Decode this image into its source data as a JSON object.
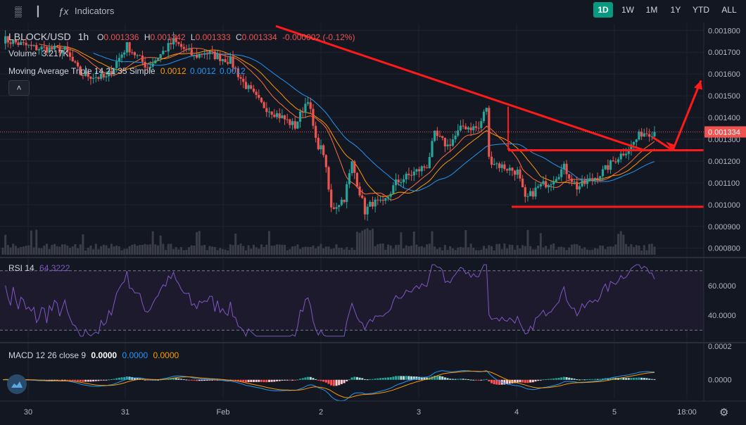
{
  "toolbar": {
    "indicators_label": "Indicators",
    "ranges": [
      "1D",
      "1W",
      "1M",
      "1Y",
      "YTD",
      "ALL"
    ],
    "active_range": "1D"
  },
  "legend": {
    "symbol": "LBLOCK/USD",
    "interval": "1h",
    "o_label": "O",
    "o_value": "0.001336",
    "h_label": "H",
    "h_value": "0.001342",
    "l_label": "L",
    "l_value": "0.001333",
    "c_label": "C",
    "c_value": "0.001334",
    "change": "-0.000002 (-0.12%)",
    "volume_label": "Volume",
    "volume_value": "3.217K",
    "ma_label": "Moving Average Triple 14 21 35 Simple",
    "ma_values": [
      "0.0012",
      "0.0012",
      "0.0012"
    ]
  },
  "rsi": {
    "label": "RSI 14",
    "value": "64.3222"
  },
  "macd": {
    "label": "MACD 12 26 close 9",
    "values": [
      "0.0000",
      "0.0000",
      "0.0000"
    ]
  },
  "colors": {
    "up": "#26a69a",
    "down": "#ef5350",
    "ma1": "#f7525f",
    "ma2": "#ff9800",
    "ma3": "#2196f3",
    "rsi": "#7e57c2",
    "annotation": "#ff1a1a",
    "macd_line": "#2196f3",
    "signal_line": "#ff9800"
  },
  "chart_data": [
    {
      "type": "candlestick",
      "title": "LBLOCK/USD 1h",
      "x_ticks": [
        "30",
        "31",
        "Feb",
        "2",
        "3",
        "4",
        "5",
        "18:00"
      ],
      "y_ticks": [
        "0.001800",
        "0.001700",
        "0.001600",
        "0.001500",
        "0.001400",
        "0.001300",
        "0.001200",
        "0.001100",
        "0.001000",
        "0.000900",
        "0.000800"
      ],
      "ylim": [
        0.00077,
        0.00183
      ],
      "last_price": "0.001334",
      "close_anchors": [
        [
          0,
          0.00176
        ],
        [
          12,
          0.00172
        ],
        [
          24,
          0.00171
        ],
        [
          30,
          0.0016
        ],
        [
          40,
          0.00158
        ],
        [
          48,
          0.00173
        ],
        [
          56,
          0.00163
        ],
        [
          66,
          0.00175
        ],
        [
          74,
          0.00168
        ],
        [
          78,
          0.0017
        ],
        [
          88,
          0.00166
        ],
        [
          93,
          0.00156
        ],
        [
          100,
          0.00146
        ],
        [
          108,
          0.0014
        ],
        [
          113,
          0.00136
        ],
        [
          118,
          0.00149
        ],
        [
          121,
          0.00129
        ],
        [
          124,
          0.00124
        ],
        [
          127,
          0.00098
        ],
        [
          132,
          0.00103
        ],
        [
          135,
          0.00119
        ],
        [
          140,
          0.00097
        ],
        [
          143,
          0.00101
        ],
        [
          147,
          0.001
        ],
        [
          152,
          0.0011
        ],
        [
          158,
          0.00114
        ],
        [
          164,
          0.00118
        ],
        [
          167,
          0.00132
        ],
        [
          172,
          0.00127
        ],
        [
          178,
          0.00136
        ],
        [
          184,
          0.00135
        ],
        [
          187,
          0.00145
        ],
        [
          188,
          0.00121
        ],
        [
          192,
          0.00118
        ],
        [
          199,
          0.00115
        ],
        [
          202,
          0.00102
        ],
        [
          207,
          0.00108
        ],
        [
          212,
          0.00111
        ],
        [
          217,
          0.00117
        ],
        [
          222,
          0.00108
        ],
        [
          227,
          0.00111
        ],
        [
          232,
          0.00115
        ],
        [
          237,
          0.00121
        ],
        [
          243,
          0.00127
        ],
        [
          247,
          0.00133
        ],
        [
          252,
          0.001334
        ]
      ],
      "annotations": {
        "descending_trendline": [
          [
            0.00182,
            0.00125
          ]
        ],
        "resistance_level": 0.00125,
        "support_level": 0.00099,
        "projected_breakout_target": 0.00157
      }
    },
    {
      "type": "line",
      "title": "RSI 14",
      "y_ticks": [
        "60.0000",
        "40.0000"
      ],
      "bands": [
        70,
        30
      ],
      "ylim": [
        24,
        76
      ],
      "series": [
        {
          "name": "RSI 14",
          "last": 64.3222
        }
      ]
    },
    {
      "type": "bar",
      "title": "MACD 12 26 close 9",
      "y_ticks": [
        "0.0002",
        "0.0000"
      ],
      "ylim": [
        -0.00011,
        0.0002
      ]
    }
  ]
}
